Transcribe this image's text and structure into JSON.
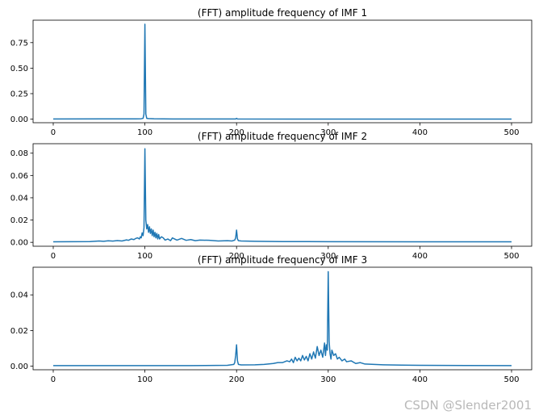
{
  "watermark": "CSDN @Slender2001",
  "line_color": "#1f77b4",
  "chart_data": [
    {
      "type": "line",
      "title": "(FFT) amplitude frequency of IMF 1",
      "xlabel": "",
      "ylabel": "",
      "xlim": [
        -22,
        522
      ],
      "ylim": [
        -0.035,
        0.97
      ],
      "xticks": [
        0,
        100,
        200,
        300,
        400,
        500
      ],
      "xtick_labels": [
        "0",
        "100",
        "200",
        "300",
        "400",
        "500"
      ],
      "yticks": [
        0.0,
        0.25,
        0.5,
        0.75
      ],
      "ytick_labels": [
        "0.00",
        "0.25",
        "0.50",
        "0.75"
      ],
      "grid": false,
      "series": [
        {
          "x": [
            0,
            90,
            96,
            98,
            99,
            100,
            101,
            102,
            104,
            110,
            130,
            199,
            200,
            201,
            260,
            500
          ],
          "y": [
            0.002,
            0.003,
            0.004,
            0.008,
            0.05,
            0.93,
            0.05,
            0.008,
            0.006,
            0.004,
            0.002,
            0.002,
            0.008,
            0.002,
            0.001,
            0.001
          ]
        }
      ]
    },
    {
      "type": "line",
      "title": "(FFT) amplitude frequency of IMF 2",
      "xlabel": "",
      "ylabel": "",
      "xlim": [
        -22,
        522
      ],
      "ylim": [
        -0.0035,
        0.0885
      ],
      "xticks": [
        0,
        100,
        200,
        300,
        400,
        500
      ],
      "xtick_labels": [
        "0",
        "100",
        "200",
        "300",
        "400",
        "500"
      ],
      "yticks": [
        0.0,
        0.02,
        0.04,
        0.06,
        0.08
      ],
      "ytick_labels": [
        "0.00",
        "0.02",
        "0.04",
        "0.06",
        "0.08"
      ],
      "grid": false,
      "series": [
        {
          "x": [
            0,
            20,
            40,
            50,
            55,
            60,
            65,
            70,
            75,
            80,
            82,
            85,
            88,
            90,
            92,
            94,
            95,
            96,
            97,
            98,
            99,
            100,
            101,
            102,
            103,
            104,
            105,
            106,
            107,
            108,
            109,
            110,
            111,
            112,
            113,
            114,
            115,
            116,
            118,
            120,
            122,
            125,
            128,
            130,
            135,
            140,
            145,
            150,
            155,
            160,
            170,
            180,
            190,
            195,
            198,
            199,
            200,
            201,
            202,
            205,
            220,
            250,
            300,
            400,
            500
          ],
          "y": [
            0.0005,
            0.0006,
            0.0007,
            0.0012,
            0.0009,
            0.0014,
            0.0011,
            0.0016,
            0.0012,
            0.0022,
            0.0018,
            0.003,
            0.0025,
            0.0035,
            0.004,
            0.003,
            0.005,
            0.004,
            0.0085,
            0.006,
            0.013,
            0.084,
            0.02,
            0.012,
            0.016,
            0.009,
            0.014,
            0.008,
            0.012,
            0.006,
            0.011,
            0.005,
            0.009,
            0.004,
            0.008,
            0.003,
            0.007,
            0.003,
            0.005,
            0.004,
            0.002,
            0.003,
            0.0015,
            0.004,
            0.002,
            0.0035,
            0.0018,
            0.0025,
            0.0015,
            0.002,
            0.0018,
            0.0012,
            0.0015,
            0.0012,
            0.002,
            0.004,
            0.011,
            0.003,
            0.0015,
            0.0012,
            0.0009,
            0.0007,
            0.0006,
            0.0005,
            0.0005
          ]
        }
      ]
    },
    {
      "type": "line",
      "title": "(FFT) amplitude frequency of IMF 3",
      "xlabel": "",
      "ylabel": "",
      "xlim": [
        -22,
        522
      ],
      "ylim": [
        -0.002,
        0.0555
      ],
      "xticks": [
        0,
        100,
        200,
        300,
        400,
        500
      ],
      "xtick_labels": [
        "0",
        "100",
        "200",
        "300",
        "400",
        "500"
      ],
      "yticks": [
        0.0,
        0.02,
        0.04
      ],
      "ytick_labels": [
        "0.00",
        "0.02",
        "0.04"
      ],
      "grid": false,
      "series": [
        {
          "x": [
            0,
            100,
            150,
            190,
            197,
            198,
            199,
            200,
            201,
            202,
            205,
            220,
            230,
            240,
            245,
            250,
            255,
            258,
            260,
            262,
            264,
            266,
            268,
            270,
            272,
            274,
            276,
            278,
            280,
            282,
            284,
            286,
            288,
            290,
            292,
            294,
            296,
            297,
            298,
            299,
            300,
            301,
            302,
            303,
            304,
            306,
            308,
            310,
            312,
            315,
            318,
            320,
            325,
            330,
            335,
            340,
            350,
            360,
            380,
            400,
            450,
            500
          ],
          "y": [
            0.0003,
            0.0003,
            0.0003,
            0.0005,
            0.001,
            0.002,
            0.006,
            0.012,
            0.003,
            0.001,
            0.0007,
            0.0008,
            0.001,
            0.0015,
            0.002,
            0.002,
            0.003,
            0.0025,
            0.004,
            0.002,
            0.005,
            0.003,
            0.0045,
            0.003,
            0.006,
            0.0035,
            0.0055,
            0.003,
            0.007,
            0.004,
            0.008,
            0.0045,
            0.011,
            0.006,
            0.009,
            0.005,
            0.013,
            0.006,
            0.012,
            0.009,
            0.053,
            0.014,
            0.007,
            0.004,
            0.009,
            0.006,
            0.007,
            0.004,
            0.005,
            0.003,
            0.004,
            0.0025,
            0.003,
            0.0015,
            0.002,
            0.0012,
            0.001,
            0.0008,
            0.0006,
            0.0005,
            0.0004,
            0.0003
          ]
        }
      ]
    }
  ]
}
